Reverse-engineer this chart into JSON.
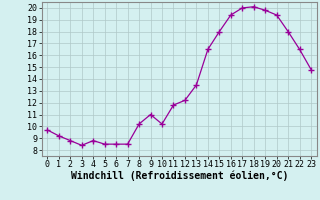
{
  "x": [
    0,
    1,
    2,
    3,
    4,
    5,
    6,
    7,
    8,
    9,
    10,
    11,
    12,
    13,
    14,
    15,
    16,
    17,
    18,
    19,
    20,
    21,
    22,
    23
  ],
  "y": [
    9.7,
    9.2,
    8.8,
    8.4,
    8.8,
    8.5,
    8.5,
    8.5,
    10.2,
    11.0,
    10.2,
    11.8,
    12.2,
    13.5,
    16.5,
    18.0,
    19.4,
    20.0,
    20.1,
    19.8,
    19.4,
    18.0,
    16.5,
    14.8
  ],
  "line_color": "#990099",
  "marker": "+",
  "marker_size": 4,
  "background_color": "#d4f0f0",
  "grid_color": "#b0c8c8",
  "xlabel": "Windchill (Refroidissement éolien,°C)",
  "ylabel": "",
  "xlim": [
    -0.5,
    23.5
  ],
  "ylim": [
    7.5,
    20.5
  ],
  "yticks": [
    8,
    9,
    10,
    11,
    12,
    13,
    14,
    15,
    16,
    17,
    18,
    19,
    20
  ],
  "xticks": [
    0,
    1,
    2,
    3,
    4,
    5,
    6,
    7,
    8,
    9,
    10,
    11,
    12,
    13,
    14,
    15,
    16,
    17,
    18,
    19,
    20,
    21,
    22,
    23
  ],
  "spine_color": "#888888",
  "tick_label_fontsize": 6.0,
  "xlabel_fontsize": 7.0,
  "line_width": 0.9
}
